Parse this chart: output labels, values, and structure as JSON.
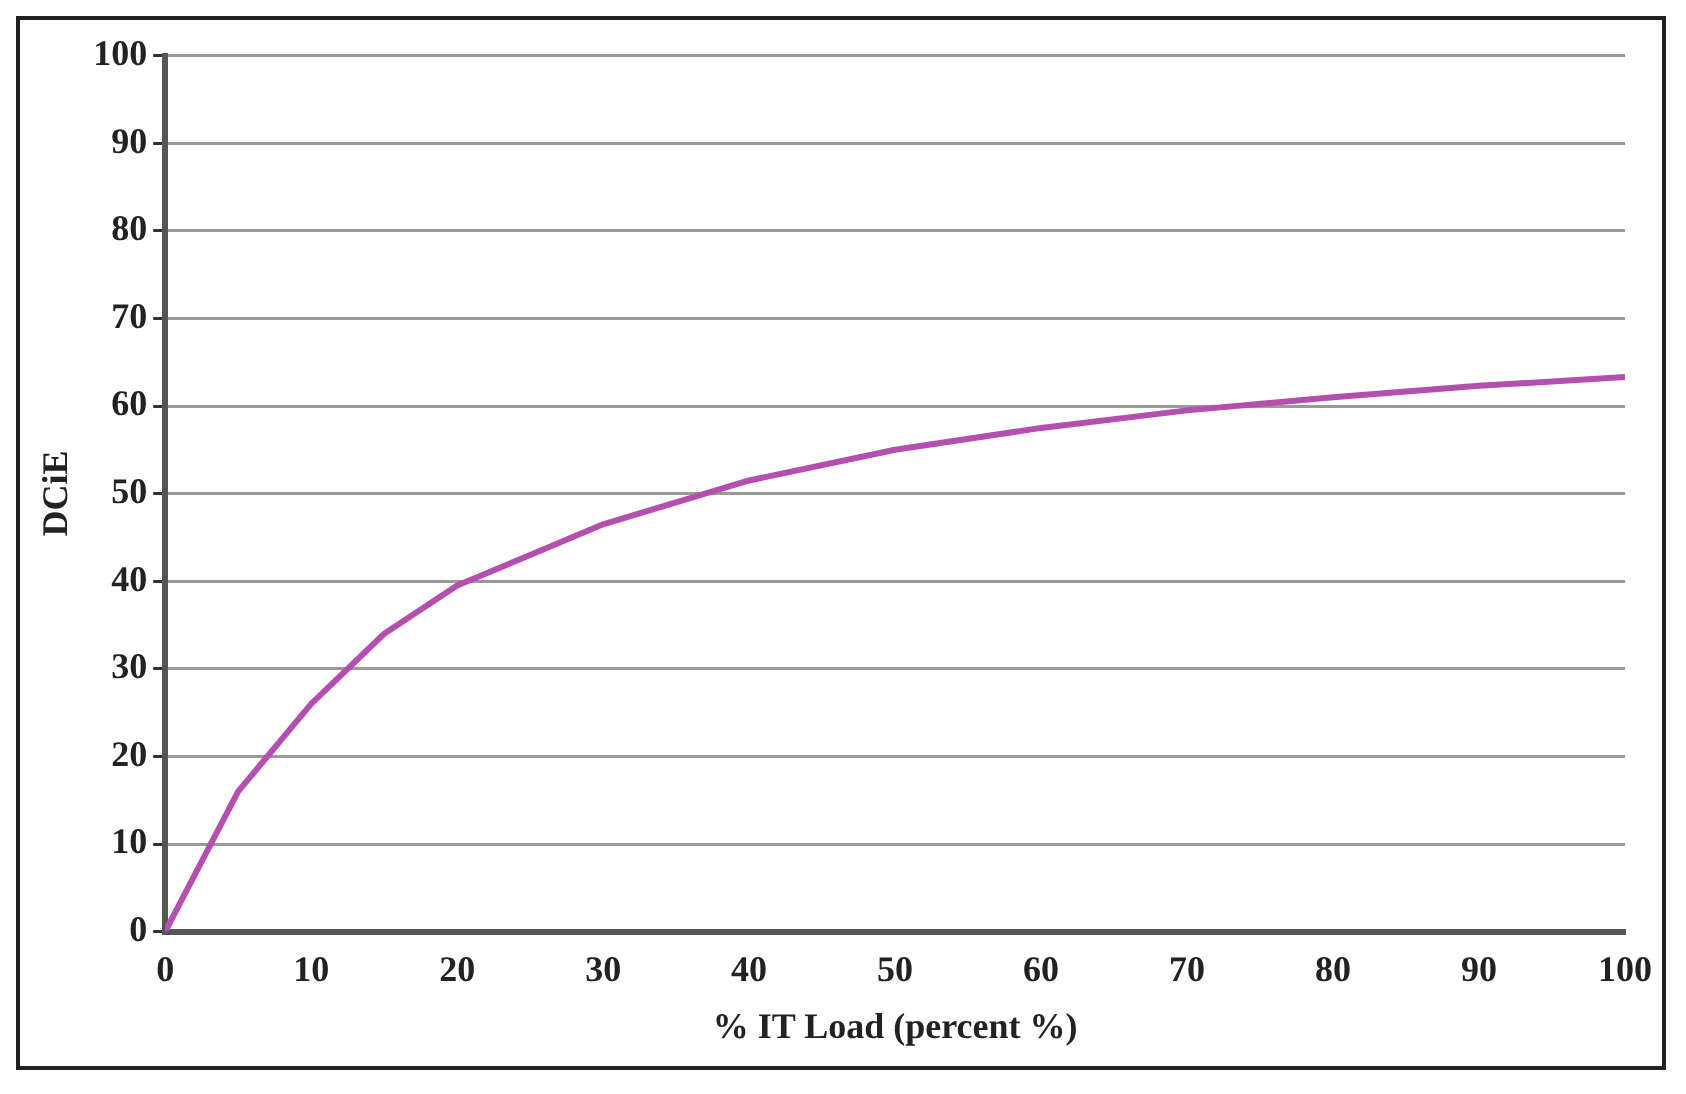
{
  "chart_data": {
    "type": "line",
    "xlabel": "% IT Load (percent %)",
    "ylabel": "DCiE",
    "x": [
      0,
      5,
      10,
      15,
      20,
      25,
      30,
      40,
      50,
      60,
      70,
      80,
      90,
      100
    ],
    "series": [
      {
        "color": "#b44fb0",
        "values": [
          0,
          16,
          26,
          34,
          39.5,
          43,
          46.5,
          51.5,
          55,
          57.5,
          59.5,
          61,
          62.3,
          63.3
        ]
      }
    ],
    "xlim": [
      0,
      100
    ],
    "xticks": [
      0,
      10,
      20,
      30,
      40,
      50,
      60,
      70,
      80,
      90,
      100
    ],
    "ylim": [
      0,
      100
    ],
    "yticks": [
      0,
      10,
      20,
      30,
      40,
      50,
      60,
      70,
      80,
      90,
      100
    ],
    "grid": "y",
    "legend": false,
    "marker": "none",
    "line_style": "solid"
  }
}
